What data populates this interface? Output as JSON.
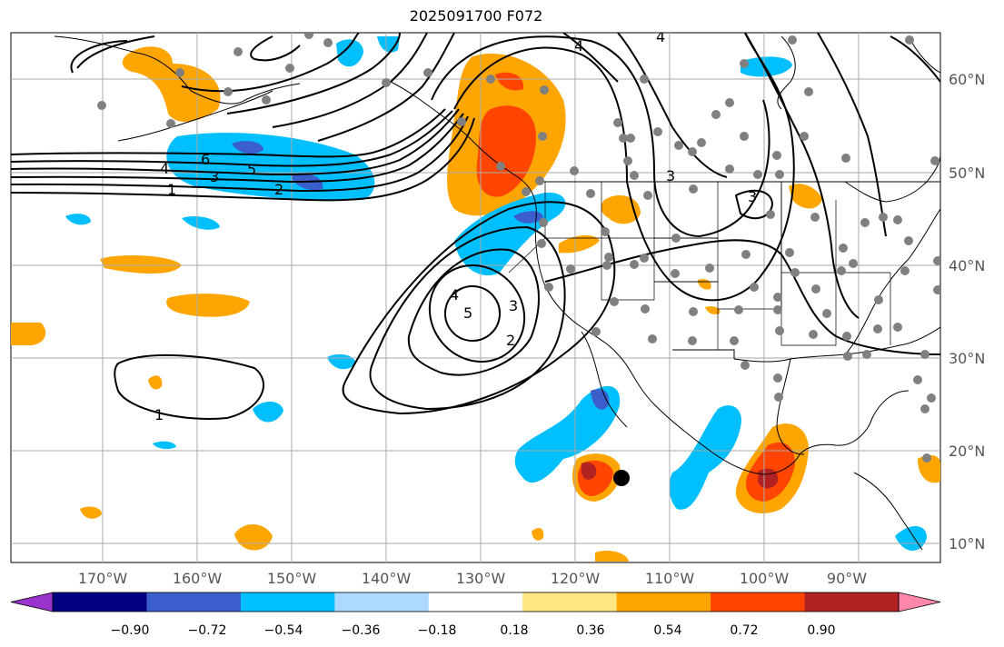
{
  "title": "2025091700 F072",
  "lon_ticks": [
    "170°W",
    "160°W",
    "150°W",
    "140°W",
    "130°W",
    "120°W",
    "110°W",
    "100°W",
    "90°W"
  ],
  "lat_ticks": [
    "60°N",
    "50°N",
    "40°N",
    "30°N",
    "20°N",
    "10°N"
  ],
  "colorbar": {
    "colors": [
      "#9933cc",
      "#000080",
      "#3a5fcd",
      "#00bfff",
      "#add8ff",
      "#ffffff",
      "#ffe680",
      "#ffa500",
      "#ff4500",
      "#b22222",
      "#ff88aa"
    ],
    "labels": [
      "−0.90",
      "−0.72",
      "−0.54",
      "−0.36",
      "−0.18",
      "0.18",
      "0.36",
      "0.54",
      "0.72",
      "0.90"
    ]
  },
  "contour_labels": [
    "6",
    "5",
    "4",
    "3",
    "2",
    "1",
    "1",
    "5",
    "4",
    "3",
    "2",
    "4",
    "4",
    "3",
    "3"
  ],
  "colors": {
    "contour": "#000000",
    "grid": "#aaaaaa",
    "station": "#808080",
    "marker": "#000000"
  }
}
